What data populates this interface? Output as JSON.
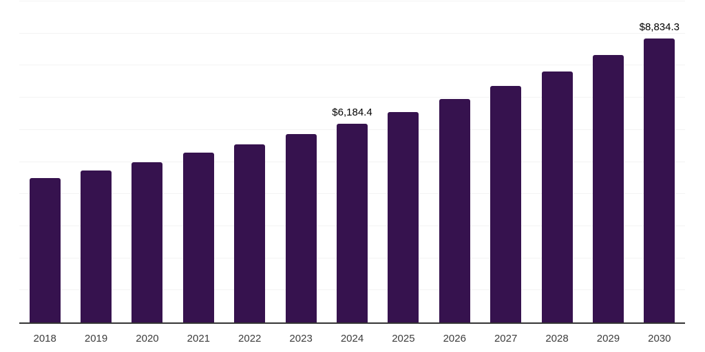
{
  "chart_data": {
    "type": "bar",
    "title": "",
    "xlabel": "",
    "ylabel": "",
    "categories": [
      "2018",
      "2019",
      "2020",
      "2021",
      "2022",
      "2023",
      "2024",
      "2025",
      "2026",
      "2027",
      "2028",
      "2029",
      "2030"
    ],
    "values": [
      4505,
      4730,
      4985,
      5285,
      5550,
      5875,
      6184.4,
      6555,
      6950,
      7370,
      7820,
      8320,
      8834.3
    ],
    "data_labels": [
      "",
      "",
      "",
      "",
      "",
      "",
      "$6,184.4",
      "",
      "",
      "",
      "",
      "",
      "$8,834.3"
    ],
    "ylim": [
      0,
      10000
    ],
    "gridline_step": 1000,
    "grid": true,
    "legend": "none",
    "colors": {
      "bar": "#36124e",
      "gridline": "#f3f3f3",
      "axis_line": "#333333",
      "tick_label": "#3c3c3c",
      "data_label": "#000000",
      "background": "#ffffff"
    }
  }
}
